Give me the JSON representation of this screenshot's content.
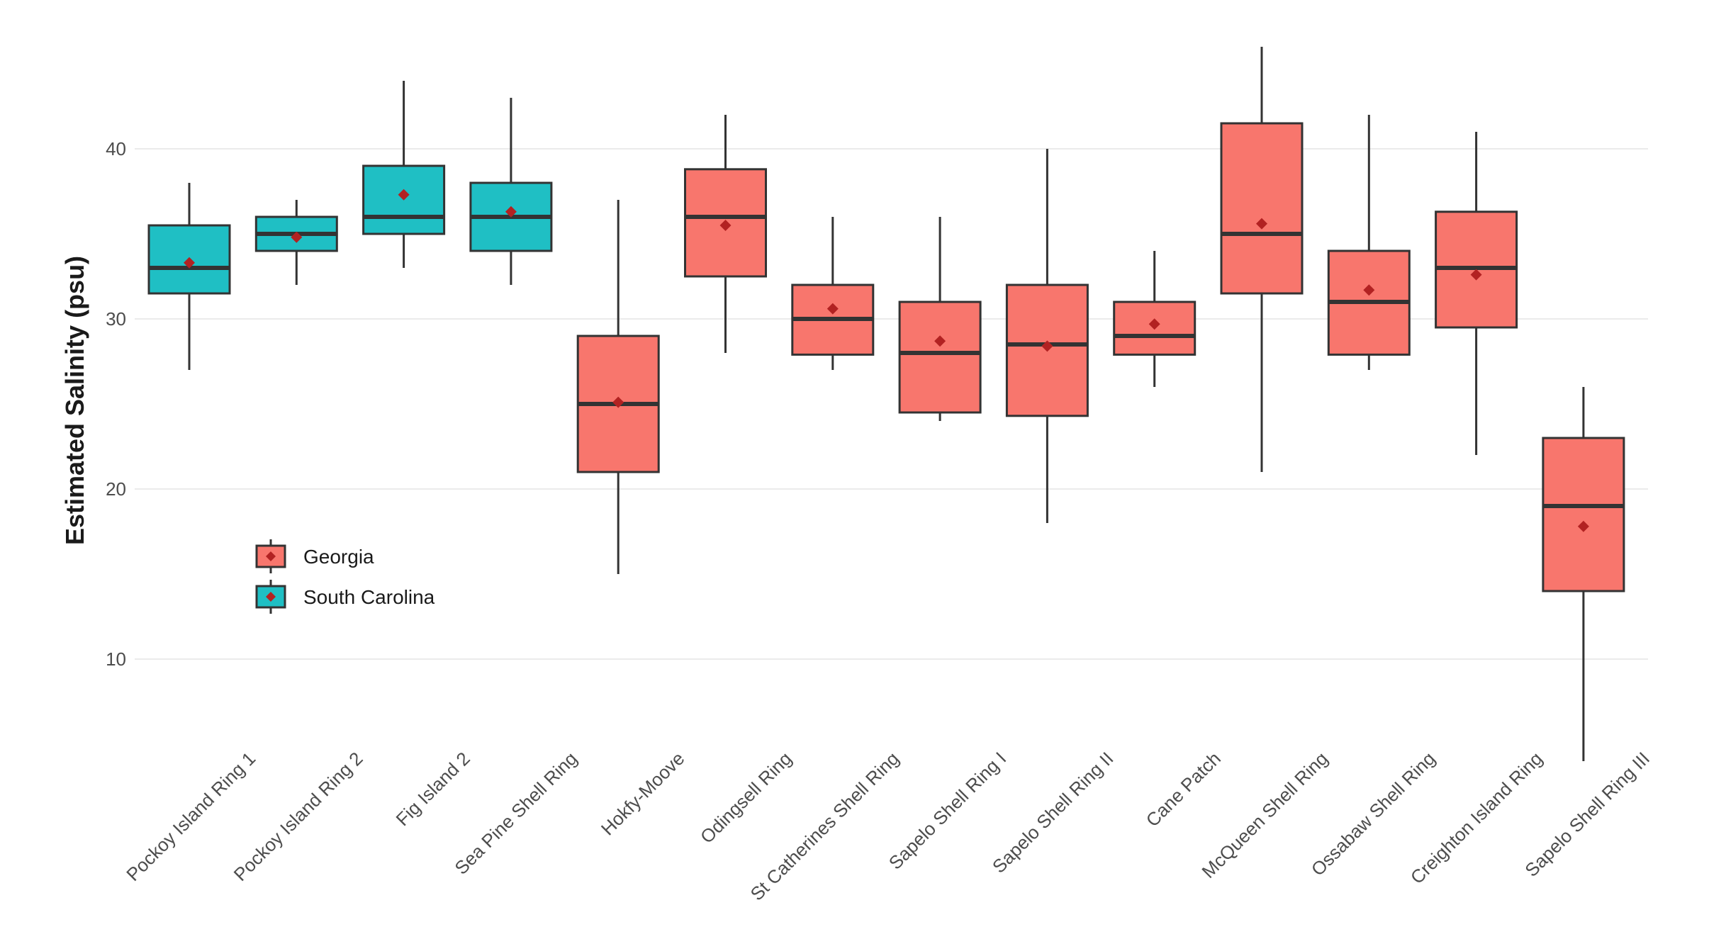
{
  "chart_data": {
    "type": "boxplot",
    "title": "",
    "xlabel": "",
    "ylabel": "Estimated Salinity (psu)",
    "ylim": [
      4,
      46
    ],
    "yticks": [
      10,
      20,
      30,
      40
    ],
    "grid": true,
    "legend_position": "left-inside",
    "colors": {
      "Georgia": "#f8766d",
      "South Carolina": "#1fbfc4",
      "mean_marker": "#b22222",
      "line": "#333333"
    },
    "legend": [
      {
        "name": "Georgia"
      },
      {
        "name": "South Carolina"
      }
    ],
    "categories": [
      "Pockoy Island Ring 1",
      "Pockoy Island Ring 2",
      "Fig Island 2",
      "Sea Pine Shell Ring",
      "Hokfy-Moove",
      "Odingsell Ring",
      "St Catherines Shell Ring",
      "Sapelo Shell Ring I",
      "Sapelo Shell Ring II",
      "Cane Patch",
      "McQueen Shell Ring",
      "Ossabaw Shell Ring",
      "Creighton Island Ring",
      "Sapelo Shell Ring III"
    ],
    "boxes": [
      {
        "group": "South Carolina",
        "min": 27,
        "q1": 31.5,
        "median": 33,
        "q3": 35.5,
        "max": 38,
        "mean": 33.3
      },
      {
        "group": "South Carolina",
        "min": 32,
        "q1": 34,
        "median": 35,
        "q3": 36,
        "max": 37,
        "mean": 34.8
      },
      {
        "group": "South Carolina",
        "min": 33,
        "q1": 35,
        "median": 36,
        "q3": 39,
        "max": 44,
        "mean": 37.3
      },
      {
        "group": "South Carolina",
        "min": 32,
        "q1": 34,
        "median": 36,
        "q3": 38,
        "max": 43,
        "mean": 36.3
      },
      {
        "group": "Georgia",
        "min": 15,
        "q1": 21,
        "median": 25,
        "q3": 29,
        "max": 37,
        "mean": 25.1
      },
      {
        "group": "Georgia",
        "min": 28,
        "q1": 32.5,
        "median": 36,
        "q3": 38.8,
        "max": 42,
        "mean": 35.5
      },
      {
        "group": "Georgia",
        "min": 27,
        "q1": 27.9,
        "median": 30,
        "q3": 32,
        "max": 36,
        "mean": 30.6
      },
      {
        "group": "Georgia",
        "min": 24,
        "q1": 24.5,
        "median": 28,
        "q3": 31,
        "max": 36,
        "mean": 28.7
      },
      {
        "group": "Georgia",
        "min": 18,
        "q1": 24.3,
        "median": 28.5,
        "q3": 32,
        "max": 40,
        "mean": 28.4
      },
      {
        "group": "Georgia",
        "min": 26,
        "q1": 27.9,
        "median": 29,
        "q3": 31,
        "max": 34,
        "mean": 29.7
      },
      {
        "group": "Georgia",
        "min": 21,
        "q1": 31.5,
        "median": 35,
        "q3": 41.5,
        "max": 46,
        "mean": 35.6
      },
      {
        "group": "Georgia",
        "min": 27,
        "q1": 27.9,
        "median": 31,
        "q3": 34,
        "max": 42,
        "mean": 31.7
      },
      {
        "group": "Georgia",
        "min": 22,
        "q1": 29.5,
        "median": 33,
        "q3": 36.3,
        "max": 41,
        "mean": 32.6
      },
      {
        "group": "Georgia",
        "min": 4,
        "q1": 14,
        "median": 19,
        "q3": 23,
        "max": 26,
        "mean": 17.8
      }
    ]
  }
}
